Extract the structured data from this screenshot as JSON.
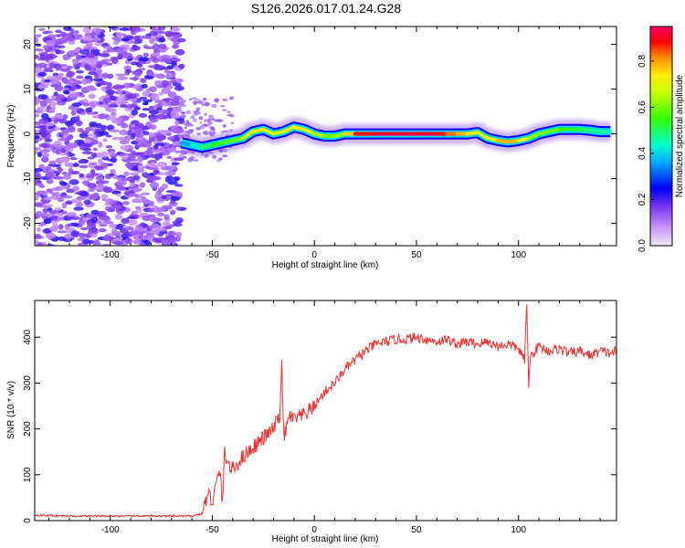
{
  "chart_data": [
    {
      "type": "heatmap",
      "title": "S126.2026.017.01.24.G28",
      "xlabel": "Height of straight line (km)",
      "ylabel": "Frequency (Hz)",
      "xlim": [
        -137,
        148
      ],
      "ylim": [
        -25,
        24
      ],
      "xticks": [
        -100,
        -50,
        0,
        50,
        100
      ],
      "yticks": [
        -20,
        -10,
        0,
        10,
        20
      ],
      "tick_labels_x": [
        "-100",
        "-50",
        "0",
        "50",
        "100"
      ],
      "tick_labels_y": [
        "-20",
        "-10",
        "0",
        "10",
        "20"
      ],
      "noise_region_km": [
        -137,
        -65
      ],
      "signal_track": {
        "x": [
          -65,
          -60,
          -55,
          -50,
          -45,
          -40,
          -35,
          -30,
          -25,
          -20,
          -15,
          -10,
          -5,
          0,
          5,
          10,
          15,
          20,
          30,
          40,
          50,
          60,
          65,
          70,
          75,
          80,
          85,
          90,
          95,
          100,
          105,
          110,
          115,
          120,
          125,
          130,
          135,
          140,
          145
        ],
        "freq": [
          -2,
          -2.5,
          -3,
          -2.5,
          -2,
          -1.5,
          -1,
          0.5,
          1,
          0,
          0.5,
          1.5,
          1,
          0,
          -0.5,
          -0.5,
          0,
          0,
          0,
          0,
          0,
          0,
          0,
          0,
          0,
          0.3,
          -1,
          -1.5,
          -1.8,
          -1.5,
          -1,
          0,
          0.5,
          1,
          1,
          1,
          0.8,
          0.5,
          0.5
        ],
        "amplitude": [
          0.35,
          0.4,
          0.5,
          0.55,
          0.6,
          0.6,
          0.65,
          0.75,
          0.8,
          0.7,
          0.7,
          0.8,
          0.75,
          0.7,
          0.65,
          0.6,
          0.7,
          0.9,
          0.95,
          0.97,
          0.97,
          0.95,
          0.9,
          0.85,
          0.8,
          0.75,
          0.7,
          0.8,
          0.85,
          0.8,
          0.7,
          0.6,
          0.65,
          0.6,
          0.55,
          0.55,
          0.5,
          0.5,
          0.45
        ]
      },
      "colorbar": {
        "label": "Normalized spectral amplitude",
        "range": [
          0,
          0.95
        ],
        "ticks": [
          0,
          0.2,
          0.4,
          0.6,
          0.8
        ],
        "tick_labels": [
          "0.0",
          "0.2",
          "0.4",
          "0.6",
          "0.8"
        ]
      }
    },
    {
      "type": "line",
      "xlabel": "Height of straight line (km)",
      "ylabel": "SNR (10 * v/v)",
      "xlim": [
        -137,
        148
      ],
      "ylim": [
        0,
        480
      ],
      "xticks": [
        -100,
        -50,
        0,
        50,
        100
      ],
      "yticks": [
        0,
        100,
        200,
        300,
        400
      ],
      "tick_labels_x": [
        "-100",
        "-50",
        "0",
        "50",
        "100"
      ],
      "tick_labels_y": [
        "0",
        "100",
        "200",
        "300",
        "400"
      ],
      "series": [
        {
          "name": "SNR",
          "color": "#ee3333",
          "x": [
            -137,
            -120,
            -100,
            -80,
            -60,
            -55,
            -52,
            -50,
            -48,
            -46,
            -45,
            -44,
            -42,
            -40,
            -35,
            -30,
            -25,
            -20,
            -17,
            -16,
            -15,
            -12,
            -10,
            -5,
            0,
            5,
            10,
            15,
            20,
            25,
            30,
            35,
            40,
            45,
            50,
            55,
            60,
            65,
            70,
            75,
            80,
            85,
            90,
            95,
            100,
            103,
            104,
            105,
            106,
            108,
            110,
            115,
            120,
            125,
            130,
            135,
            140,
            145,
            148
          ],
          "y": [
            12,
            10,
            10,
            10,
            10,
            15,
            60,
            40,
            80,
            110,
            30,
            150,
            120,
            110,
            140,
            160,
            180,
            200,
            230,
            340,
            180,
            230,
            220,
            230,
            250,
            280,
            300,
            330,
            350,
            370,
            385,
            390,
            395,
            395,
            400,
            395,
            390,
            395,
            385,
            390,
            385,
            390,
            380,
            385,
            375,
            350,
            470,
            300,
            360,
            370,
            380,
            370,
            375,
            365,
            370,
            360,
            370,
            365,
            370
          ]
        }
      ]
    }
  ]
}
